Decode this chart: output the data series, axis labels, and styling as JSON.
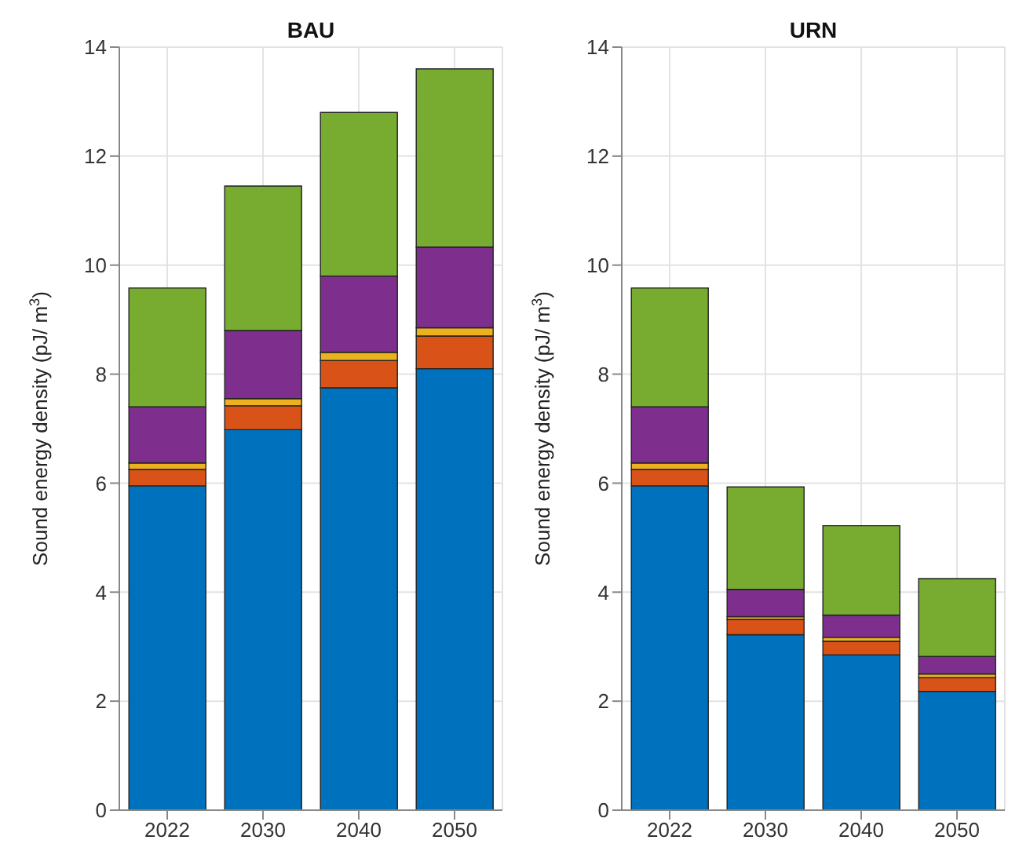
{
  "chart_data": [
    {
      "type": "bar",
      "title": "BAU",
      "ylabel": "Sound energy density (pJ/ m$^{3}$)",
      "categories": [
        "2022",
        "2030",
        "2040",
        "2050"
      ],
      "stacked": true,
      "grid": true,
      "legend": false,
      "ylim": [
        0,
        14
      ],
      "yticks": [
        0,
        2,
        4,
        6,
        8,
        10,
        12,
        14
      ],
      "series": [
        {
          "color": "#0072bd",
          "values": [
            5.95,
            6.98,
            7.75,
            8.1
          ]
        },
        {
          "color": "#d95319",
          "values": [
            0.3,
            0.44,
            0.5,
            0.6
          ]
        },
        {
          "color": "#edb120",
          "values": [
            0.12,
            0.13,
            0.15,
            0.15
          ]
        },
        {
          "color": "#7e2f8e",
          "values": [
            1.03,
            1.25,
            1.4,
            1.48
          ]
        },
        {
          "color": "#77ac30",
          "values": [
            2.18,
            2.65,
            3.0,
            3.27
          ]
        }
      ]
    },
    {
      "type": "bar",
      "title": "URN",
      "ylabel": "Sound energy density (pJ/ m$^{3}$)",
      "categories": [
        "2022",
        "2030",
        "2040",
        "2050"
      ],
      "stacked": true,
      "grid": true,
      "legend": false,
      "ylim": [
        0,
        14
      ],
      "yticks": [
        0,
        2,
        4,
        6,
        8,
        10,
        12,
        14
      ],
      "series": [
        {
          "color": "#0072bd",
          "values": [
            5.95,
            3.22,
            2.85,
            2.18
          ]
        },
        {
          "color": "#d95319",
          "values": [
            0.3,
            0.28,
            0.25,
            0.25
          ]
        },
        {
          "color": "#edb120",
          "values": [
            0.12,
            0.05,
            0.07,
            0.07
          ]
        },
        {
          "color": "#7e2f8e",
          "values": [
            1.03,
            0.5,
            0.41,
            0.32
          ]
        },
        {
          "color": "#77ac30",
          "values": [
            2.18,
            1.88,
            1.64,
            1.43
          ]
        }
      ]
    }
  ]
}
